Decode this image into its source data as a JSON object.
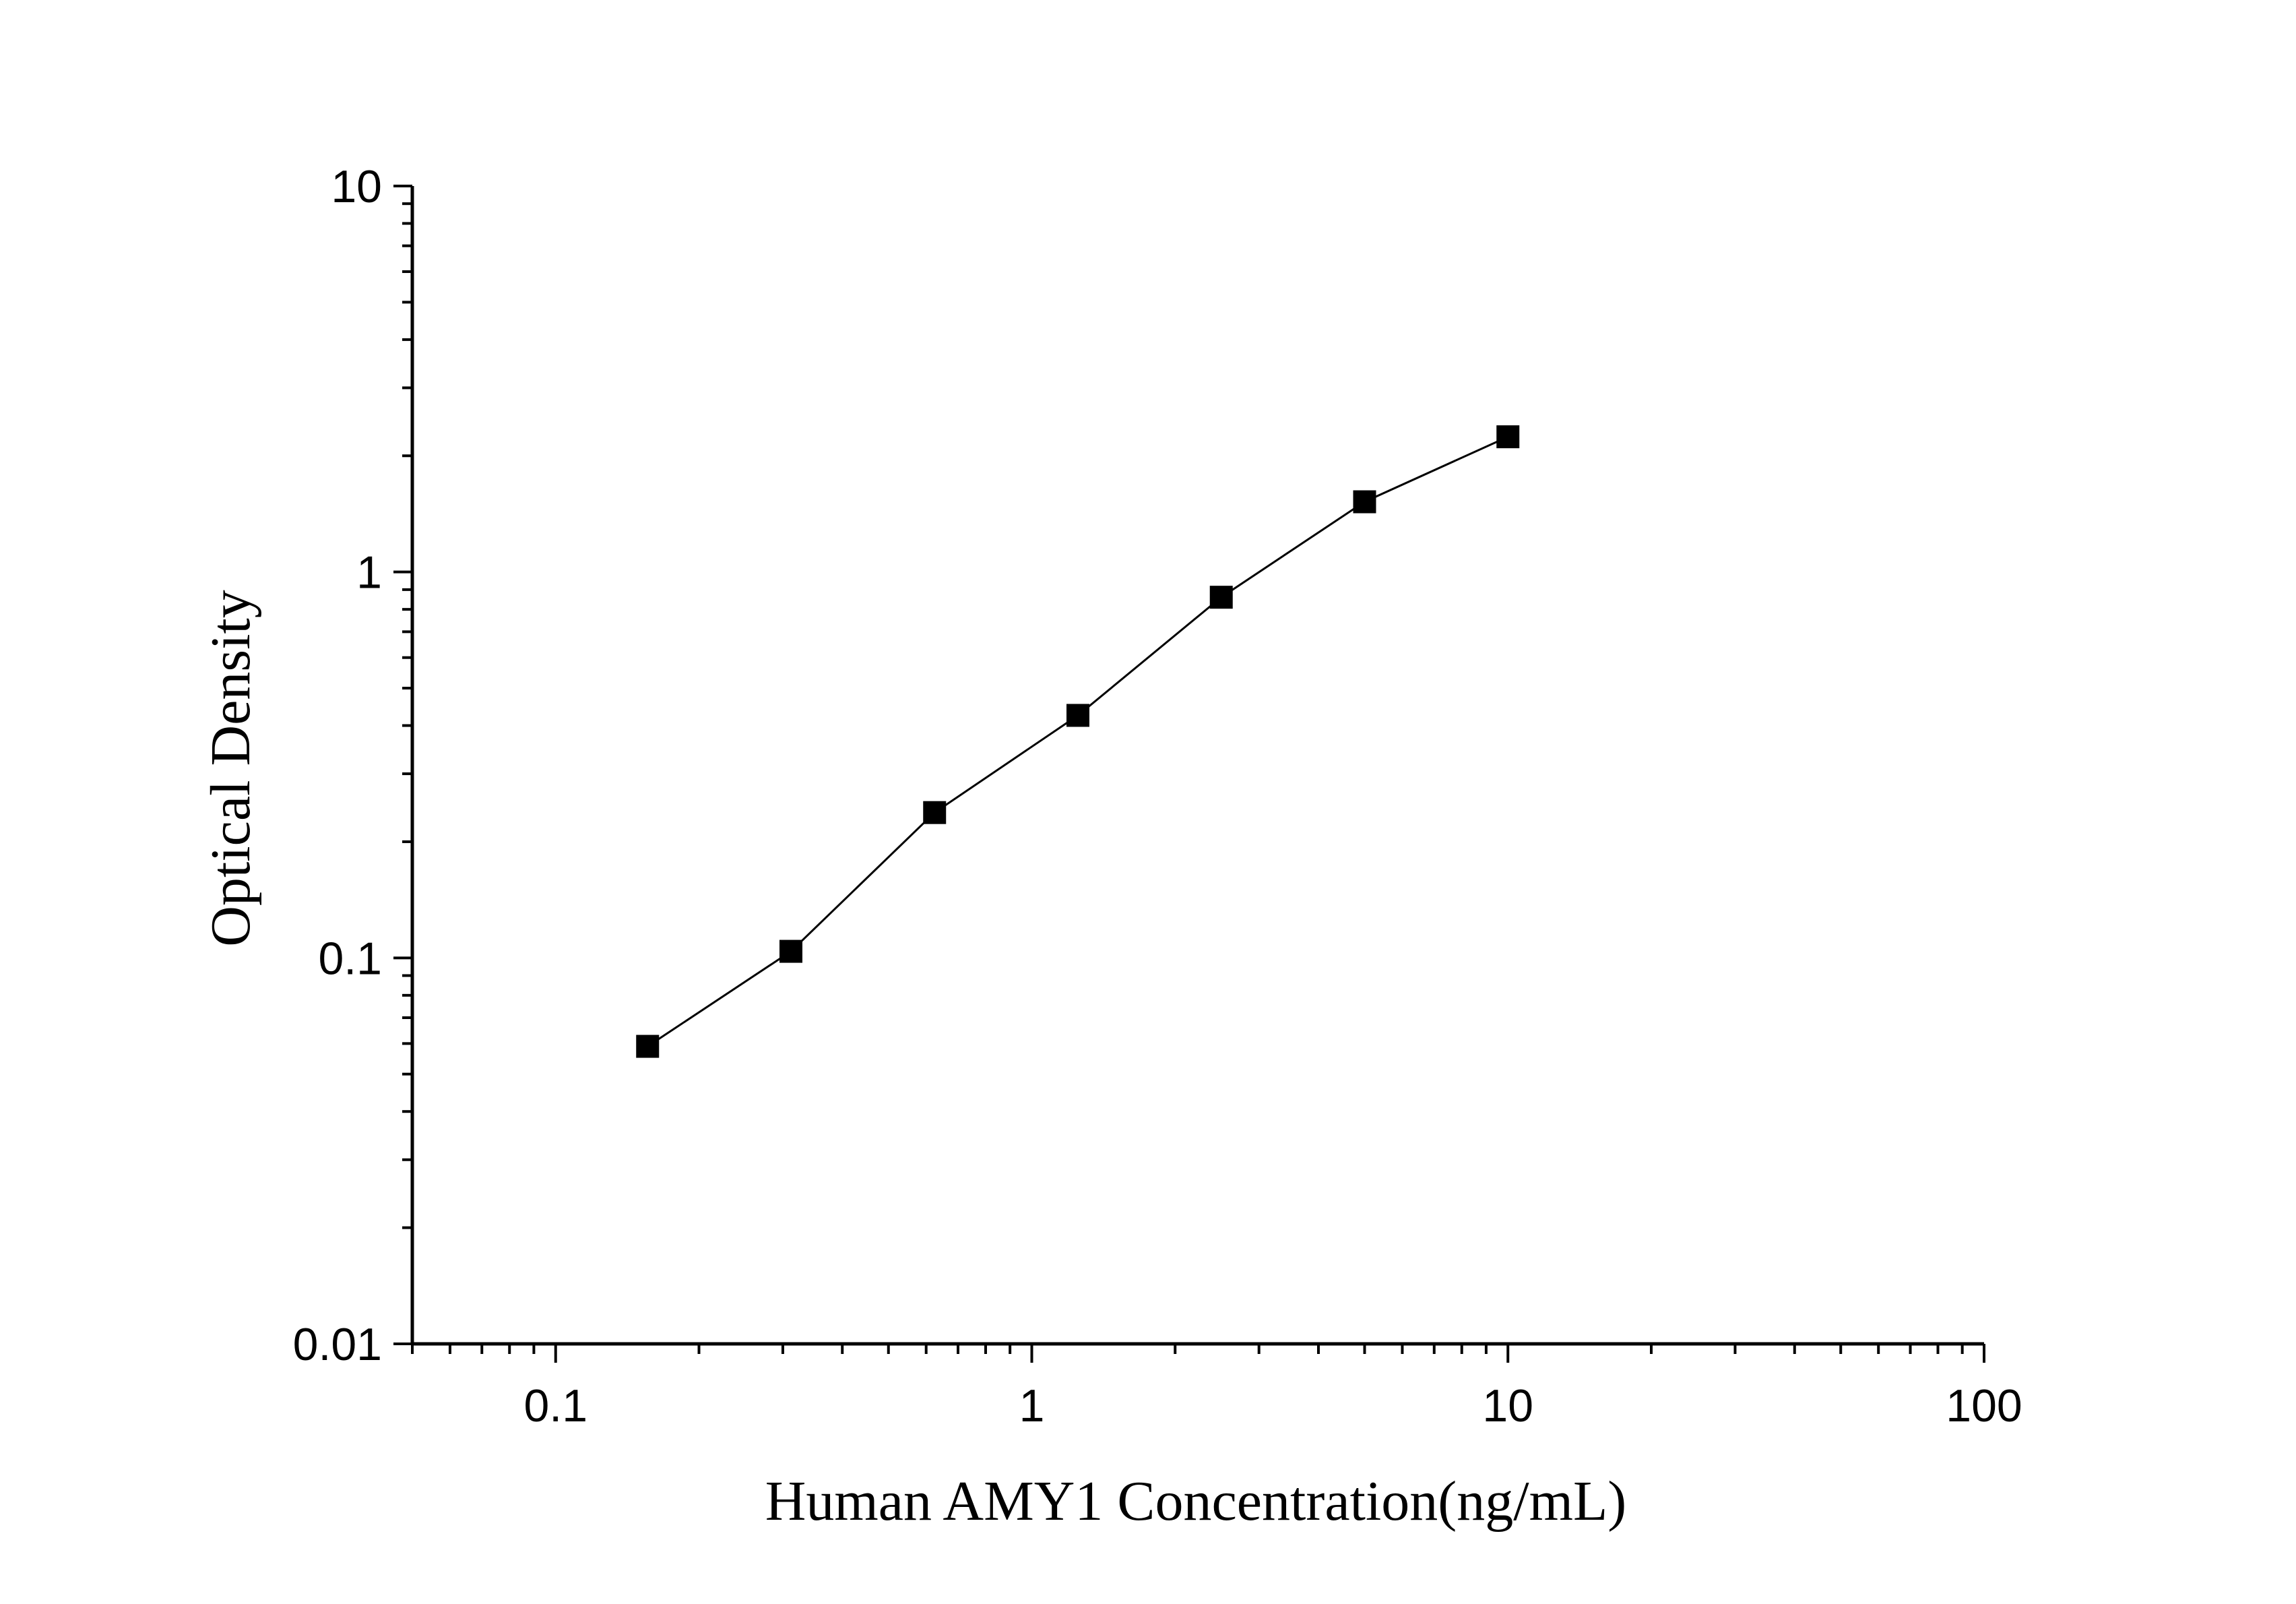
{
  "chart_data": {
    "type": "scatter",
    "title": "",
    "xlabel": "Human AMY1 Concentration(ng/mL)",
    "ylabel": "Optical Density",
    "xscale": "log",
    "yscale": "log",
    "xlim": [
      0.05,
      100
    ],
    "ylim": [
      0.01,
      10
    ],
    "x_ticks": [
      "0.1",
      "1",
      "10",
      "100"
    ],
    "y_ticks": [
      "0.01",
      "0.1",
      "1",
      "10"
    ],
    "grid": false,
    "legend": "none",
    "series": [
      {
        "marker": "square",
        "connected": true,
        "color": "#000000",
        "x": [
          0.156,
          0.312,
          0.625,
          1.25,
          2.5,
          5,
          10
        ],
        "y": [
          0.059,
          0.104,
          0.238,
          0.425,
          0.86,
          1.52,
          2.24
        ]
      }
    ]
  }
}
